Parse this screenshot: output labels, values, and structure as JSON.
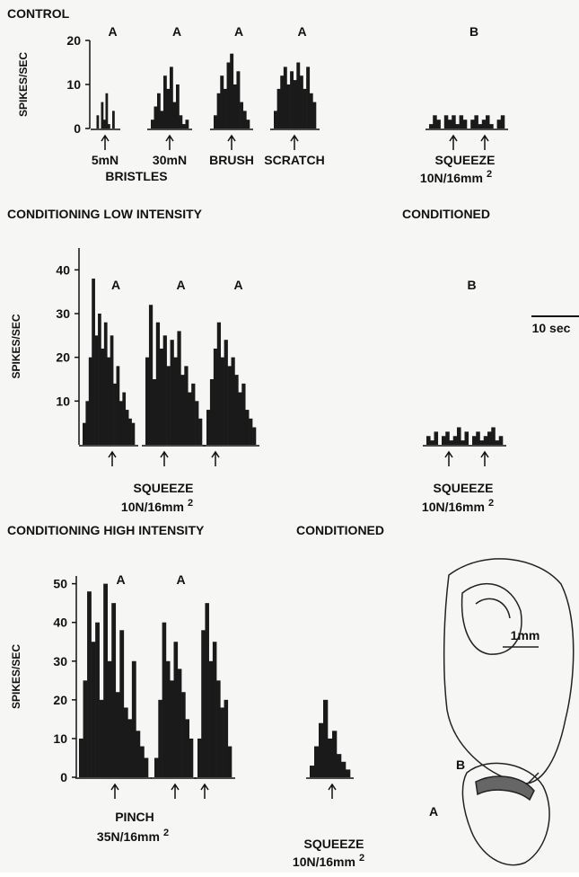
{
  "panels": [
    {
      "title": "CONTROL",
      "y_label": "SPIKES/SEC",
      "ylim": [
        0,
        20
      ],
      "yticks": [
        0,
        10,
        20
      ],
      "histograms": [
        {
          "label": "A",
          "values": [
            0,
            3,
            0,
            6,
            2,
            8,
            1,
            0,
            4,
            0
          ]
        },
        {
          "label": "A",
          "values": [
            2,
            5,
            8,
            4,
            12,
            9,
            14,
            6,
            10,
            3,
            1,
            2
          ]
        },
        {
          "label": "A",
          "values": [
            3,
            8,
            12,
            9,
            15,
            17,
            10,
            13,
            6,
            4,
            2
          ]
        },
        {
          "label": "A",
          "values": [
            4,
            9,
            12,
            14,
            10,
            13,
            11,
            15,
            12,
            9,
            14,
            8,
            6
          ]
        },
        {
          "label": "B",
          "values": [
            1,
            3,
            2,
            0,
            3,
            2,
            3,
            1,
            3,
            2,
            0,
            2,
            3,
            1,
            2,
            3,
            1,
            0,
            2,
            3
          ]
        }
      ],
      "captions": [
        {
          "text": "5mN"
        },
        {
          "text": "30mN"
        },
        {
          "text": "BRISTLES"
        },
        {
          "text": "BRUSH"
        },
        {
          "text": "SCRATCH"
        },
        {
          "text": "SQUEEZE"
        },
        {
          "text": "10N/16mm",
          "sup": "2"
        }
      ]
    },
    {
      "title": "CONDITIONING LOW INTENSITY",
      "right_title": "CONDITIONED",
      "y_label": "SPIKES/SEC",
      "ylim": [
        0,
        45
      ],
      "yticks": [
        10,
        20,
        30,
        40
      ],
      "histograms": [
        {
          "label": "A",
          "values": [
            5,
            10,
            20,
            38,
            25,
            30,
            22,
            28,
            20,
            25,
            14,
            18,
            10,
            12,
            8,
            6,
            5
          ]
        },
        {
          "label": "A",
          "values": [
            20,
            32,
            15,
            28,
            22,
            25,
            18,
            24,
            20,
            26,
            16,
            18,
            12,
            14,
            10,
            6
          ]
        },
        {
          "label": "A",
          "values": [
            8,
            15,
            22,
            28,
            20,
            24,
            18,
            20,
            16,
            12,
            14,
            8,
            6,
            4
          ]
        },
        {
          "label": "B",
          "values": [
            2,
            1,
            3,
            0,
            2,
            3,
            1,
            2,
            4,
            1,
            3,
            0,
            2,
            3,
            1,
            2,
            3,
            4,
            1,
            2
          ]
        }
      ],
      "captions": [
        {
          "text": "SQUEEZE"
        },
        {
          "text": "10N/16mm",
          "sup": "2"
        },
        {
          "text": "SQUEEZE"
        },
        {
          "text": "10N/16mm",
          "sup": "2"
        },
        {
          "text": "10 sec"
        }
      ]
    },
    {
      "title": "CONDITIONING HIGH INTENSITY",
      "right_title": "CONDITIONED",
      "y_label": "SPIKES/SEC",
      "ylim": [
        0,
        52
      ],
      "yticks": [
        0,
        10,
        20,
        30,
        40,
        50
      ],
      "histograms": [
        {
          "label": "A",
          "values": [
            10,
            25,
            48,
            35,
            40,
            20,
            50,
            30,
            45,
            22,
            38,
            18,
            15,
            30,
            12,
            8,
            5
          ]
        },
        {
          "label": "A",
          "values": [
            5,
            20,
            40,
            30,
            25,
            35,
            28,
            22,
            15,
            10
          ]
        },
        {
          "values": [
            10,
            38,
            45,
            30,
            35,
            25,
            18,
            20,
            8
          ]
        },
        {
          "values": [
            3,
            8,
            14,
            20,
            10,
            12,
            6,
            4,
            2
          ]
        }
      ],
      "captions": [
        {
          "text": "PINCH"
        },
        {
          "text": "35N/16mm",
          "sup": "2"
        },
        {
          "text": "SQUEEZE"
        },
        {
          "text": "10N/16mm",
          "sup": "2"
        }
      ]
    }
  ],
  "diagram": {
    "labels": [
      "1mm",
      "B",
      "A"
    ]
  }
}
